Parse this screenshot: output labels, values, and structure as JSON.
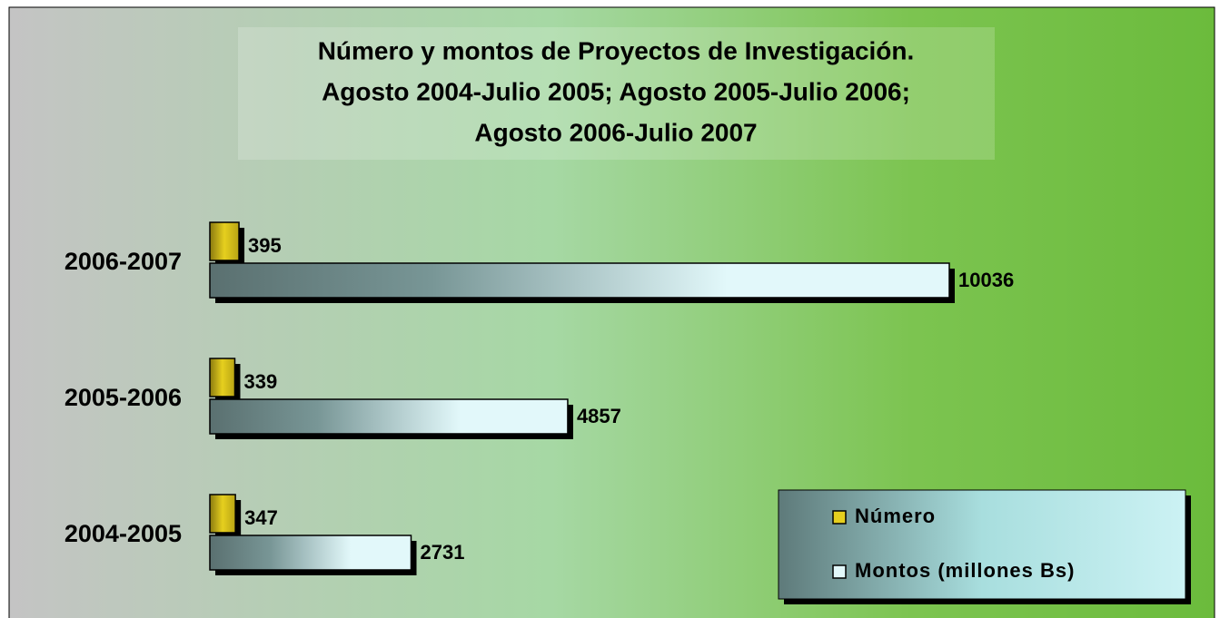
{
  "chart_data": {
    "type": "barh",
    "title": [
      "Número y montos de Proyectos de Investigación.",
      "Agosto 2004-Julio 2005; Agosto 2005-Julio 2006;",
      "Agosto 2006-Julio 2007"
    ],
    "categories": [
      "2004-2005",
      "2005-2006",
      "2006-2007"
    ],
    "series": [
      {
        "name": "Número",
        "color": "#e6cf1e",
        "values": [
          347,
          339,
          395
        ]
      },
      {
        "name": "Montos (millones Bs)",
        "color": "#e2f8fa",
        "values": [
          2731,
          4857,
          10036
        ]
      }
    ],
    "legend": "lower right"
  }
}
